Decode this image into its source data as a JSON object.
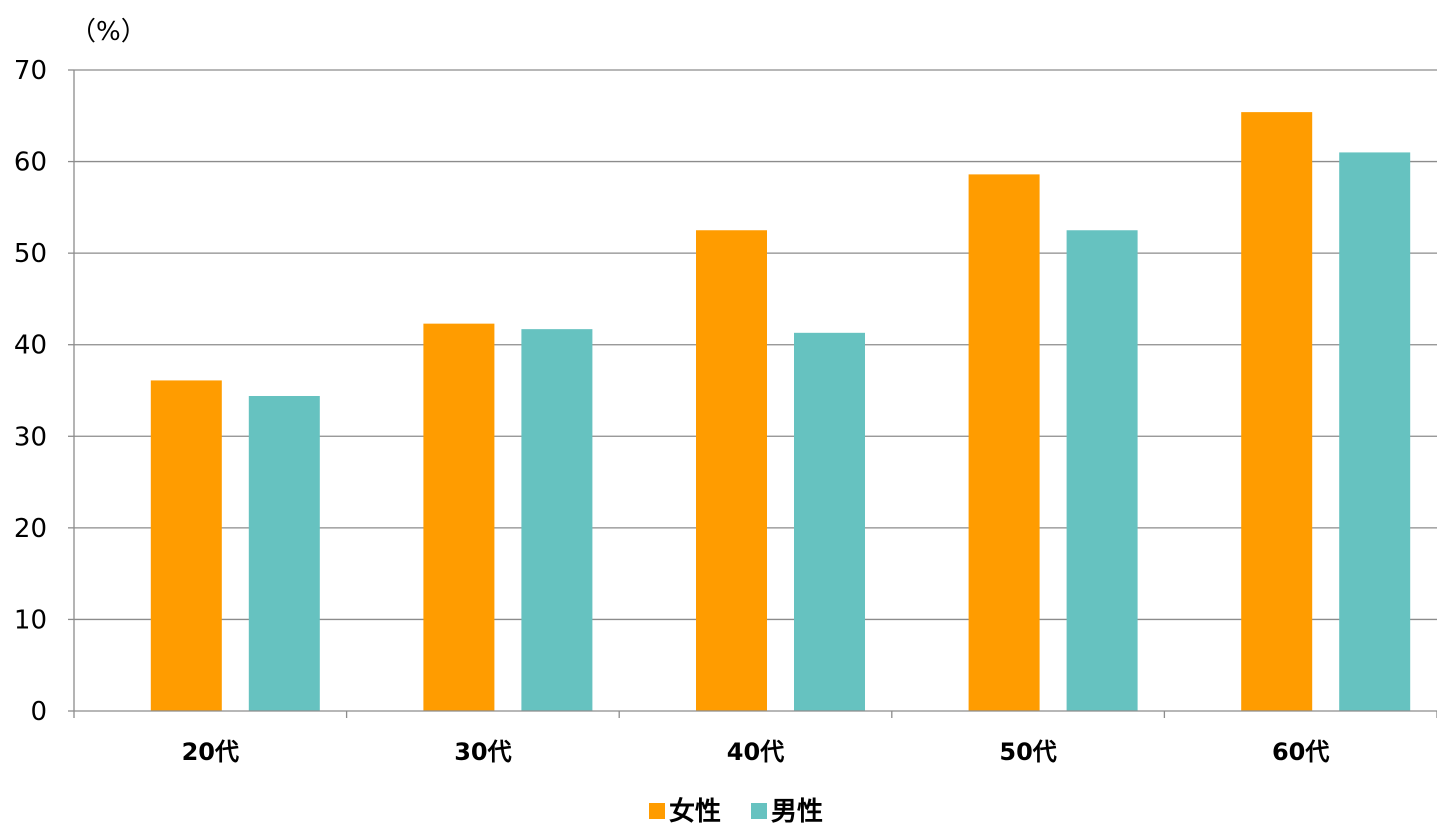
{
  "chart_data": {
    "type": "bar",
    "unit_label": "（%）",
    "categories": [
      "20代",
      "30代",
      "40代",
      "50代",
      "60代"
    ],
    "series": [
      {
        "name": "女性",
        "color": "#ff9c00",
        "values": [
          36.1,
          42.3,
          52.5,
          58.6,
          65.4
        ]
      },
      {
        "name": "男性",
        "color": "#66c2c0",
        "values": [
          34.4,
          41.7,
          41.3,
          52.5,
          61.0
        ]
      }
    ],
    "ylim": [
      0,
      70
    ],
    "yticks": [
      0,
      10,
      20,
      30,
      40,
      50,
      60,
      70
    ],
    "grid": true,
    "legend_position": "bottom"
  }
}
